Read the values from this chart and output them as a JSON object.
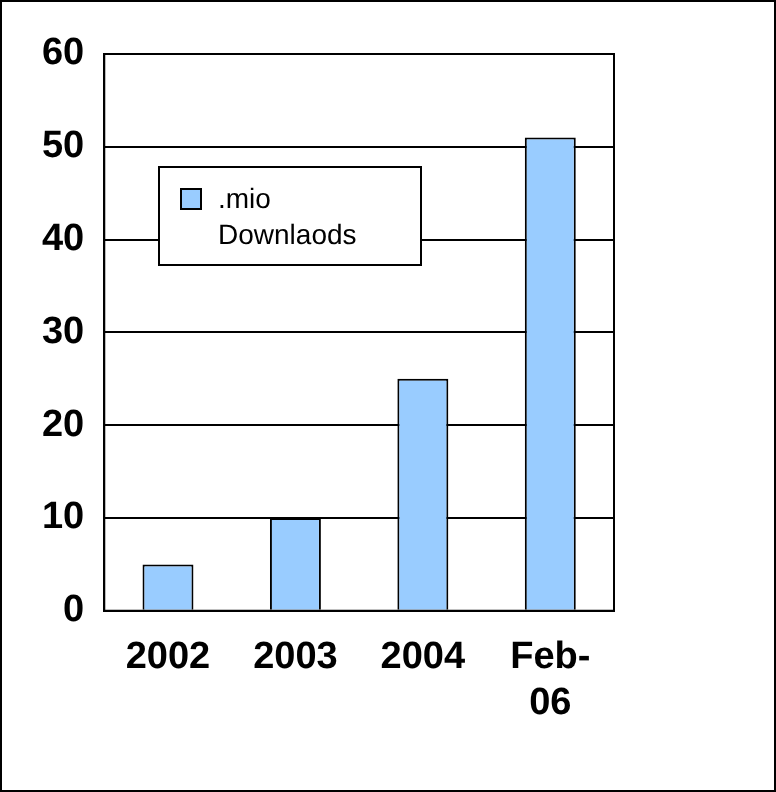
{
  "chart_data": {
    "type": "bar",
    "categories": [
      "2002",
      "2003",
      "2004",
      "Feb-06"
    ],
    "series": [
      {
        "name": ".mio Downlaods",
        "color": "#99ccff",
        "values": [
          5,
          10,
          25,
          51
        ]
      }
    ],
    "ylim": [
      0,
      60
    ],
    "yticks": [
      0,
      10,
      20,
      30,
      40,
      50,
      60
    ],
    "grid": "y",
    "legend": "top left"
  }
}
